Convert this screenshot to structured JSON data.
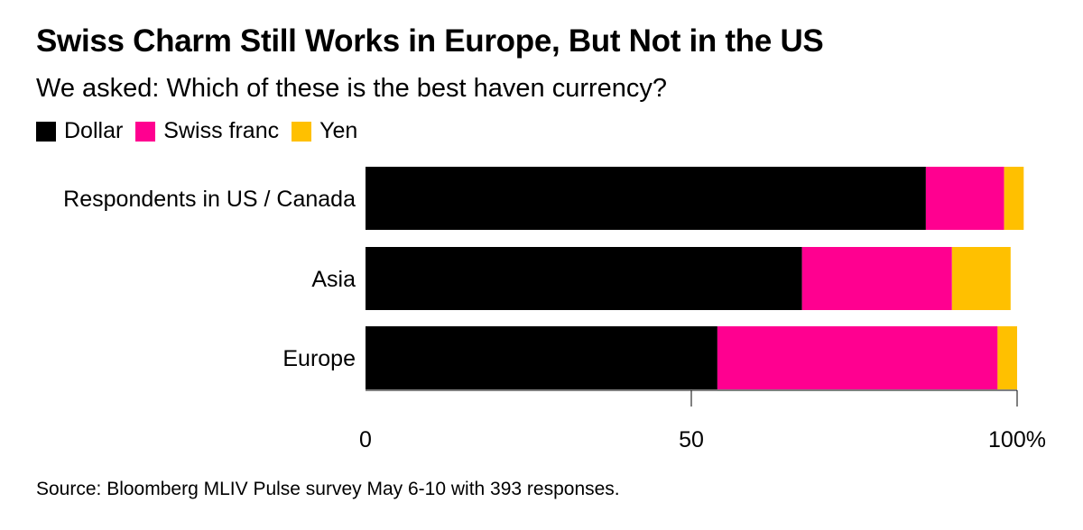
{
  "title": "Swiss Charm Still Works in Europe, But Not in the US",
  "subtitle": "We asked: Which of these is the best haven currency?",
  "source": "Source: Bloomberg MLIV Pulse survey May 6-10 with 393 responses.",
  "colors": {
    "dollar": "#000000",
    "swiss_franc": "#ff0090",
    "yen": "#ffc000",
    "axis": "#000000"
  },
  "chart_data": {
    "type": "bar",
    "orientation": "horizontal",
    "stacked": true,
    "categories": [
      "Respondents in US / Canada",
      "Asia",
      "Europe"
    ],
    "series": [
      {
        "name": "Dollar",
        "color": "#000000",
        "values": [
          86,
          67,
          54
        ]
      },
      {
        "name": "Swiss franc",
        "color": "#ff0090",
        "values": [
          12,
          23,
          43
        ]
      },
      {
        "name": "Yen",
        "color": "#ffc000",
        "values": [
          3,
          9,
          3
        ]
      }
    ],
    "xlim": [
      0,
      100
    ],
    "xticks": [
      0,
      50,
      100
    ],
    "xtick_labels": [
      "0",
      "50",
      "100%"
    ],
    "legend_position": "top-left",
    "grid": false
  }
}
